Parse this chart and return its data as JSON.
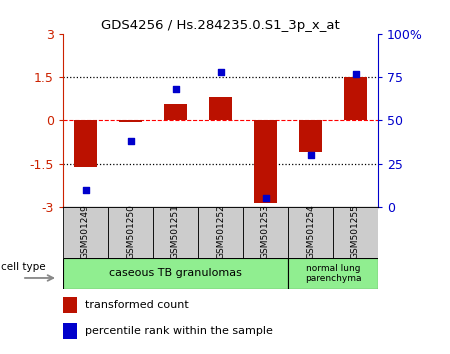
{
  "title": "GDS4256 / Hs.284235.0.S1_3p_x_at",
  "samples": [
    "GSM501249",
    "GSM501250",
    "GSM501251",
    "GSM501252",
    "GSM501253",
    "GSM501254",
    "GSM501255"
  ],
  "red_values": [
    -1.62,
    -0.05,
    0.55,
    0.8,
    -2.85,
    -1.1,
    1.5
  ],
  "blue_values_pct": [
    10,
    38,
    68,
    78,
    5,
    30,
    77
  ],
  "ylim_left": [
    -3,
    3
  ],
  "ylim_right": [
    0,
    100
  ],
  "left_ticks": [
    -3,
    -1.5,
    0,
    1.5,
    3
  ],
  "right_ticks": [
    0,
    25,
    50,
    75,
    100
  ],
  "group1_label": "caseous TB granulomas",
  "group2_label": "normal lung\nparenchyma",
  "group1_color": "#90EE90",
  "group2_color": "#90EE90",
  "cell_type_label": "cell type",
  "legend1_label": "transformed count",
  "legend2_label": "percentile rank within the sample",
  "red_color": "#BB1100",
  "blue_color": "#0000CC",
  "bar_width": 0.5,
  "tick_label_color_left": "#CC2200",
  "tick_label_color_right": "#0000CC",
  "bg_color": "#FFFFFF",
  "sample_box_color": "#CCCCCC",
  "plot_border_color": "#000000"
}
